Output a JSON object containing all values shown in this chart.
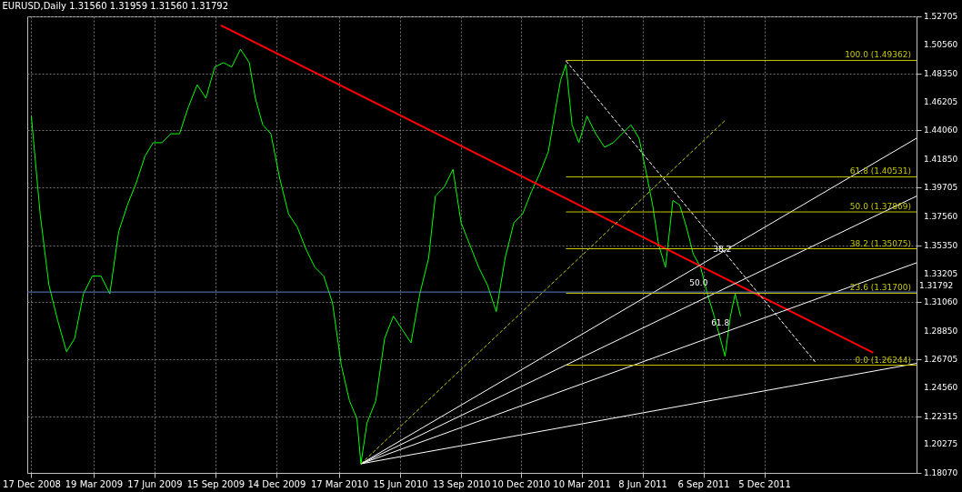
{
  "chart_data": {
    "type": "line",
    "title": "EURUSD,Daily  1.31560 1.31959 1.31560 1.31792",
    "x": [
      "2008-12-17",
      "2008-12-30",
      "2009-01-12",
      "2009-01-25",
      "2009-02-07",
      "2009-02-19",
      "2009-03-04",
      "2009-03-17",
      "2009-03-30",
      "2009-04-12",
      "2009-04-25",
      "2009-05-08",
      "2009-05-21",
      "2009-06-03",
      "2009-06-15",
      "2009-06-28",
      "2009-07-11",
      "2009-07-24",
      "2009-08-06",
      "2009-08-19",
      "2009-09-01",
      "2009-09-14",
      "2009-09-27",
      "2009-10-09",
      "2009-10-22",
      "2009-11-04",
      "2009-11-13",
      "2009-11-24",
      "2009-12-06",
      "2009-12-19",
      "2010-01-01",
      "2010-01-14",
      "2010-01-27",
      "2010-02-09",
      "2010-02-22",
      "2010-03-07",
      "2010-03-20",
      "2010-04-01",
      "2010-04-12",
      "2010-04-18",
      "2010-04-27",
      "2010-05-10",
      "2010-05-23",
      "2010-06-05",
      "2010-06-18",
      "2010-07-01",
      "2010-07-14",
      "2010-07-27",
      "2010-08-06",
      "2010-08-19",
      "2010-09-01",
      "2010-09-13",
      "2010-09-26",
      "2010-10-09",
      "2010-10-22",
      "2010-11-04",
      "2010-11-17",
      "2010-11-30",
      "2010-12-13",
      "2010-12-26",
      "2011-01-07",
      "2011-01-20",
      "2011-01-31",
      "2011-02-07",
      "2011-02-15",
      "2011-02-24",
      "2011-03-06",
      "2011-03-18",
      "2011-03-31",
      "2011-04-13",
      "2011-04-26",
      "2011-05-09",
      "2011-05-22",
      "2011-06-03",
      "2011-06-14",
      "2011-06-23",
      "2011-07-02",
      "2011-07-12",
      "2011-07-23",
      "2011-08-02",
      "2011-08-12",
      "2011-08-22",
      "2011-09-02",
      "2011-09-12",
      "2011-09-22",
      "2011-10-01",
      "2011-10-08",
      "2011-10-16",
      "2011-10-23",
      "2011-10-31"
    ],
    "series": [
      {
        "type": "line",
        "color": "#00ff00",
        "values": [
          1.4514,
          1.3772,
          1.3232,
          1.2962,
          1.2726,
          1.2827,
          1.3165,
          1.33,
          1.33,
          1.3165,
          1.3637,
          1.3839,
          1.4008,
          1.4211,
          1.4312,
          1.4312,
          1.438,
          1.438,
          1.4582,
          1.4751,
          1.465,
          1.4886,
          1.492,
          1.4886,
          1.5021,
          1.492,
          1.465,
          1.4447,
          1.438,
          1.4042,
          1.3772,
          1.3671,
          1.3502,
          1.3367,
          1.33,
          1.3097,
          1.2625,
          1.2355,
          1.222,
          1.1876,
          1.2186,
          1.2355,
          1.2827,
          1.2996,
          1.2895,
          1.2794,
          1.3165,
          1.3435,
          1.3907,
          1.3975,
          1.411,
          1.3705,
          1.3536,
          1.3367,
          1.3232,
          1.303,
          1.3435,
          1.3705,
          1.3772,
          1.3941,
          1.4076,
          1.4245,
          1.4582,
          1.4785,
          1.4906,
          1.4447,
          1.4312,
          1.4514,
          1.438,
          1.4278,
          1.4312,
          1.438,
          1.4447,
          1.4346,
          1.4076,
          1.3839,
          1.3536,
          1.3367,
          1.3874,
          1.3839,
          1.3671,
          1.3469,
          1.3367,
          1.3165,
          1.2996,
          1.2827,
          1.2692,
          1.2996,
          1.3165,
          1.2996
        ]
      },
      {
        "type": "line",
        "color": "#ff0000",
        "x": [
          "2009-09-23",
          "2012-05-14"
        ],
        "values": [
          1.5203,
          1.2719
        ]
      },
      {
        "type": "line",
        "color": "#ffffff",
        "x": [
          "2010-04-18",
          "2012-07-17"
        ],
        "values": [
          1.1876,
          1.4346
        ]
      },
      {
        "type": "line",
        "color": "#ffffff",
        "x": [
          "2010-04-18",
          "2012-07-17"
        ],
        "values": [
          1.1876,
          1.3907
        ]
      },
      {
        "type": "line",
        "color": "#ffffff",
        "x": [
          "2010-04-18",
          "2012-07-17"
        ],
        "values": [
          1.1876,
          1.3401
        ]
      },
      {
        "type": "line",
        "color": "#ffffff",
        "x": [
          "2010-04-18",
          "2012-07-17"
        ],
        "values": [
          1.1876,
          1.2638
        ]
      },
      {
        "type": "line",
        "color": "#c8c800",
        "line_style": "dashed",
        "x": [
          "2010-04-18",
          "2011-10-08"
        ],
        "values": [
          1.1876,
          1.4481
        ]
      },
      {
        "type": "line",
        "color": "#ffffff",
        "line_style": "dashed",
        "x": [
          "2011-02-15",
          "2012-02-20"
        ],
        "values": [
          1.4933,
          1.2638
        ]
      },
      {
        "type": "line",
        "name": "100.0  (1.49362)",
        "color": "#c8c800",
        "x": [
          "2011-02-15",
          "2012-07-17"
        ],
        "values": [
          1.49362,
          1.49362
        ]
      },
      {
        "type": "line",
        "name": "61.8  (1.40531)",
        "color": "#c8c800",
        "x": [
          "2011-02-15",
          "2012-07-17"
        ],
        "values": [
          1.40531,
          1.40531
        ]
      },
      {
        "type": "line",
        "name": "50.0  (1.37869)",
        "color": "#c8c800",
        "x": [
          "2011-02-15",
          "2012-07-17"
        ],
        "values": [
          1.37869,
          1.37869
        ]
      },
      {
        "type": "line",
        "name": "38.2  (1.35075)",
        "color": "#c8c800",
        "x": [
          "2011-02-15",
          "2012-07-17"
        ],
        "values": [
          1.35075,
          1.35075
        ]
      },
      {
        "type": "line",
        "name": "23.6  (1.31700)",
        "color": "#c8c800",
        "x": [
          "2011-02-15",
          "2012-07-17"
        ],
        "values": [
          1.317,
          1.317
        ]
      },
      {
        "type": "line",
        "name": "0.0  (1.26244)",
        "color": "#c8c800",
        "x": [
          "2011-02-15",
          "2012-07-17"
        ],
        "values": [
          1.26244,
          1.26244
        ]
      }
    ],
    "ref_lines": [
      {
        "axis": "y",
        "value": 1.31792,
        "label": "1.31792",
        "color": "#6080c0"
      }
    ],
    "annotations": [
      {
        "text": "38.2",
        "x": "2011-10-04",
        "y": 1.3501
      },
      {
        "text": "50.0",
        "x": "2011-08-30",
        "y": 1.3252
      },
      {
        "text": "61.8",
        "x": "2011-10-01",
        "y": 1.2942
      }
    ],
    "xlim": [
      "2008-12-11",
      "2012-07-17"
    ],
    "xticks": [
      {
        "value": "2008-12-17",
        "label": "17 Dec 2008"
      },
      {
        "value": "2009-03-19",
        "label": "19 Mar 2009"
      },
      {
        "value": "2009-06-17",
        "label": "17 Jun 2009"
      },
      {
        "value": "2009-09-15",
        "label": "15 Sep 2009"
      },
      {
        "value": "2009-12-14",
        "label": "14 Dec 2009"
      },
      {
        "value": "2010-03-17",
        "label": "17 Mar 2010"
      },
      {
        "value": "2010-06-15",
        "label": "15 Jun 2010"
      },
      {
        "value": "2010-09-13",
        "label": "13 Sep 2010"
      },
      {
        "value": "2010-12-10",
        "label": "10 Dec 2010"
      },
      {
        "value": "2011-03-10",
        "label": "10 Mar 2011"
      },
      {
        "value": "2011-06-08",
        "label": "8 Jun 2011"
      },
      {
        "value": "2011-09-06",
        "label": "6 Sep 2011"
      },
      {
        "value": "2011-12-05",
        "label": "5 Dec 2011"
      }
    ],
    "ylim": [
      1.1807,
      1.52705
    ],
    "yticks": [
      {
        "value": 1.1807,
        "label": "1.18070"
      },
      {
        "value": 1.20275,
        "label": "1.20275"
      },
      {
        "value": 1.22315,
        "label": "1.22315"
      },
      {
        "value": 1.2456,
        "label": "1.24560"
      },
      {
        "value": 1.26705,
        "label": "1.26705"
      },
      {
        "value": 1.2885,
        "label": "1.28850"
      },
      {
        "value": 1.3106,
        "label": "1.31060"
      },
      {
        "value": 1.33205,
        "label": "1.33205"
      },
      {
        "value": 1.3535,
        "label": "1.35350"
      },
      {
        "value": 1.3756,
        "label": "1.37560"
      },
      {
        "value": 1.39705,
        "label": "1.39705"
      },
      {
        "value": 1.4185,
        "label": "1.41850"
      },
      {
        "value": 1.4406,
        "label": "1.44060"
      },
      {
        "value": 1.46205,
        "label": "1.46205"
      },
      {
        "value": 1.4835,
        "label": "1.48350"
      },
      {
        "value": 1.5056,
        "label": "1.50560"
      },
      {
        "value": 1.52705,
        "label": "1.52705"
      }
    ],
    "grid": true,
    "marker": "none"
  }
}
